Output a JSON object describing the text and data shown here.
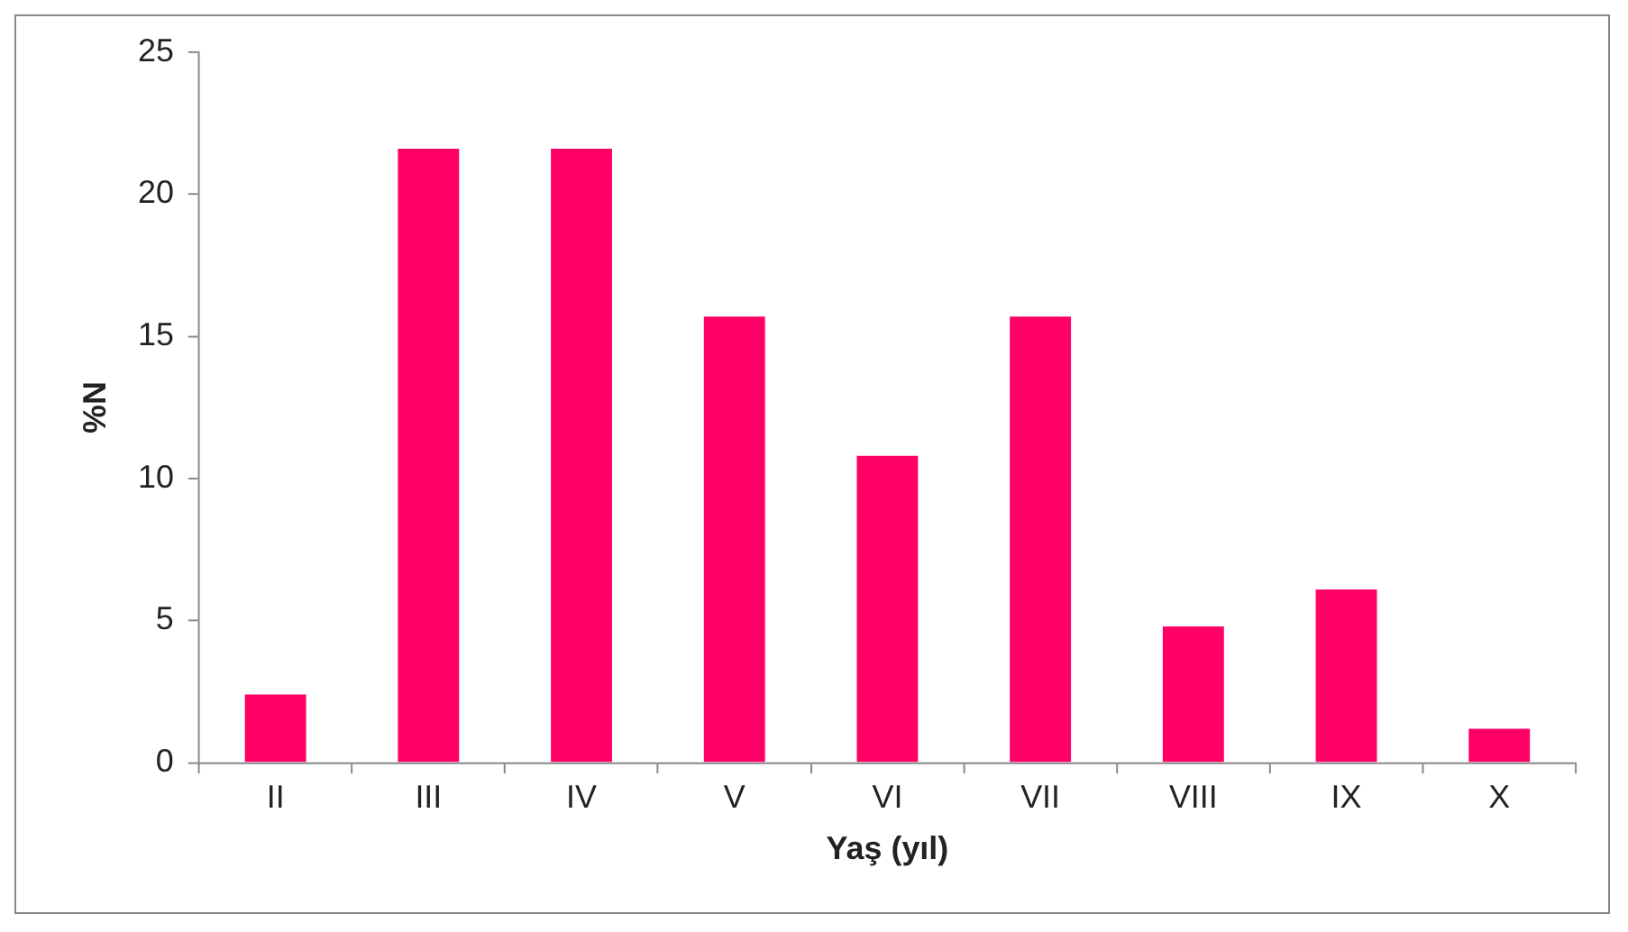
{
  "chart_data": {
    "type": "bar",
    "xlabel": "Yaş (yıl)",
    "ylabel": "%N",
    "categories": [
      "II",
      "III",
      "IV",
      "V",
      "VI",
      "VII",
      "VIII",
      "IX",
      "X"
    ],
    "values": [
      2.4,
      21.6,
      21.6,
      15.7,
      10.8,
      15.7,
      4.8,
      6.1,
      1.2
    ],
    "color": "#ff0066",
    "ylim": [
      0,
      25
    ],
    "yticks": [
      0,
      5,
      10,
      15,
      20,
      25
    ],
    "grid": false,
    "legend": false
  }
}
